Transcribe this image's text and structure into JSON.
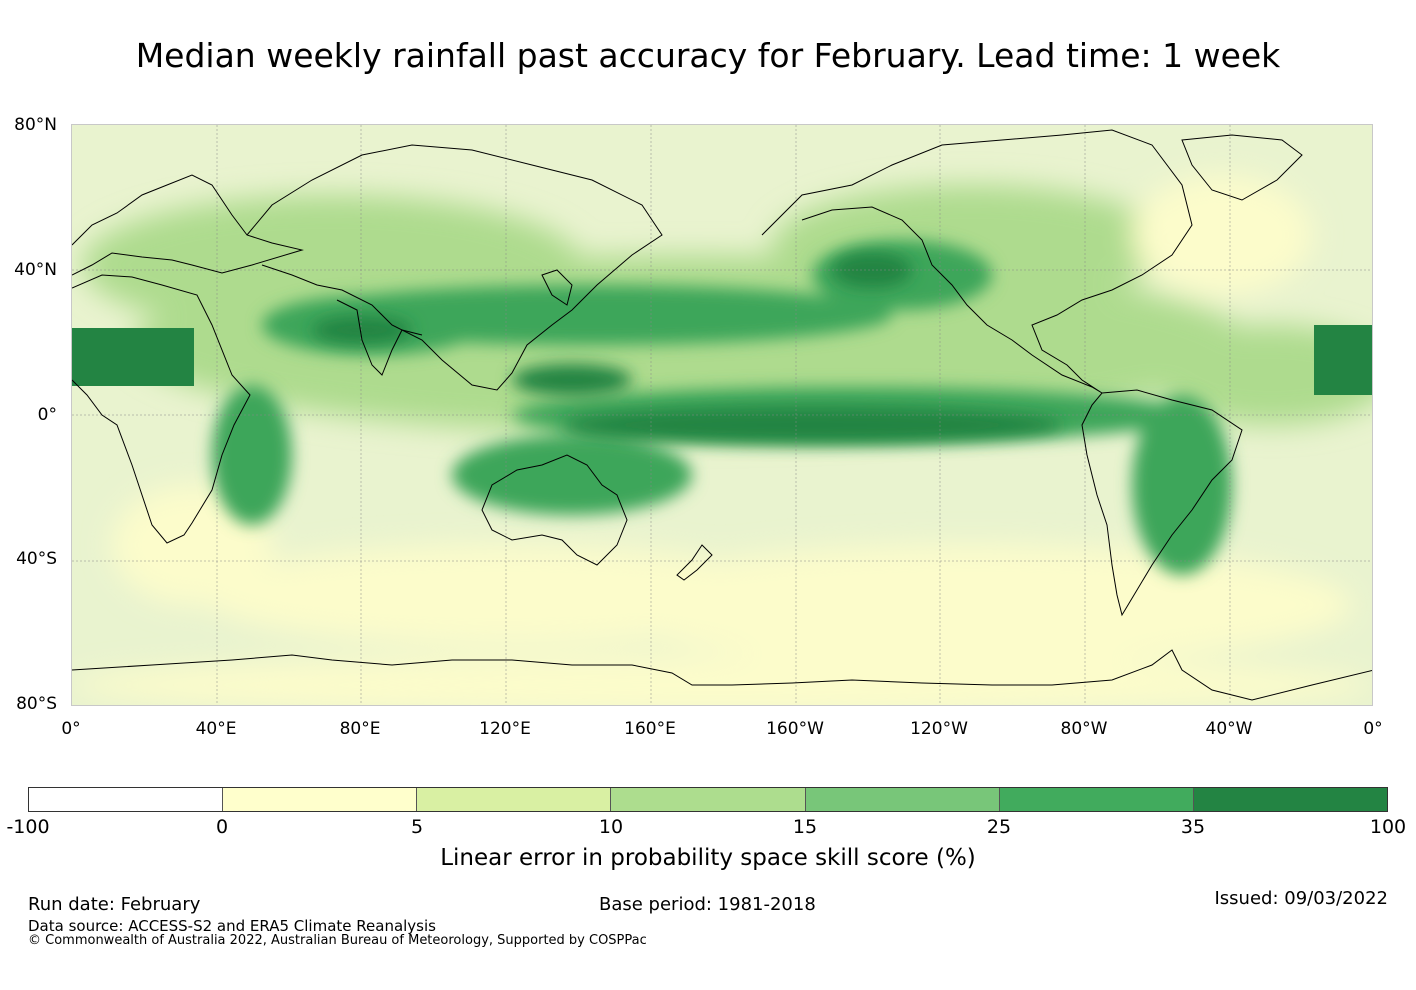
{
  "title": "Median weekly rainfall past accuracy for February. Lead time: 1 week",
  "map": {
    "lat_labels": [
      "80°N",
      "40°N",
      "0°",
      "40°S",
      "80°S"
    ],
    "lon_labels": [
      "0°",
      "40°E",
      "80°E",
      "120°E",
      "160°E",
      "160°W",
      "120°W",
      "80°W",
      "40°W",
      "0°"
    ],
    "colors": {
      "ocean_base": "#e9f3cf",
      "low": "#fcfccb",
      "mid": "#aedb8e",
      "high": "#3da65a",
      "very_high": "#238443",
      "coast": "#000000"
    }
  },
  "colorbar": {
    "ticks": [
      "-100",
      "0",
      "5",
      "10",
      "15",
      "25",
      "35",
      "100"
    ],
    "colors": [
      "#ffffff",
      "#ffffcc",
      "#d9f0a3",
      "#addd8e",
      "#78c679",
      "#41ab5d",
      "#238443"
    ],
    "label": "Linear error in probability space skill score (%)"
  },
  "footer": {
    "run_date": "Run date: February",
    "base_period": "Base period: 1981-2018",
    "issued": "Issued: 09/03/2022",
    "data_source": "Data source: ACCESS-S2 and ERA5 Climate Reanalysis",
    "copyright": "© Commonwealth of Australia 2022, Australian Bureau of Meteorology, Supported by COSPPac"
  }
}
